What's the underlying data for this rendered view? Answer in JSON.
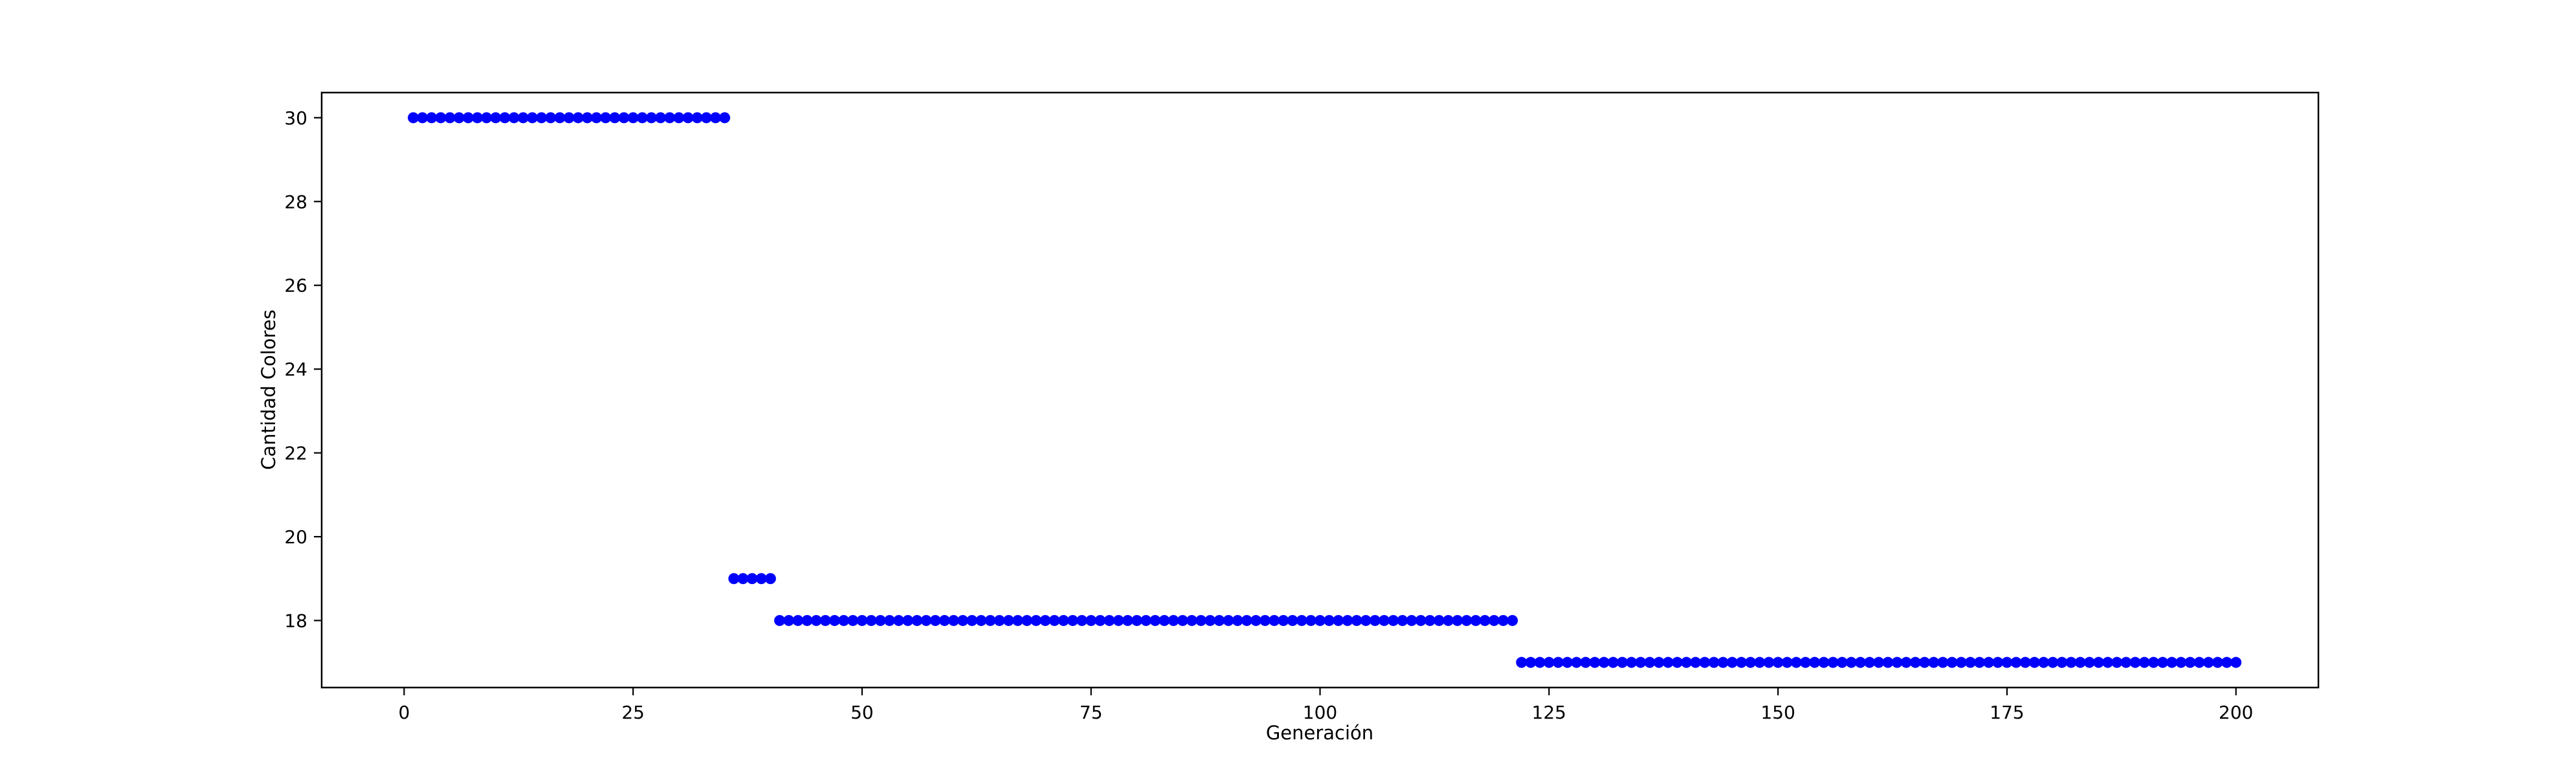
{
  "chart_data": {
    "type": "scatter",
    "title": "",
    "xlabel": "Generación",
    "ylabel": "Cantidad Colores",
    "xlim": [
      -9,
      209
    ],
    "ylim": [
      16.4,
      30.6
    ],
    "xticks": [
      0,
      25,
      50,
      75,
      100,
      125,
      150,
      175,
      200
    ],
    "yticks": [
      18,
      20,
      22,
      24,
      26,
      28,
      30
    ],
    "grid": false,
    "marker_color": "#0000ff",
    "series": [
      {
        "name": "Cantidad Colores",
        "segments": [
          {
            "x_from": 1,
            "x_to": 35,
            "y": 30
          },
          {
            "x_from": 36,
            "x_to": 40,
            "y": 19
          },
          {
            "x_from": 41,
            "x_to": 121,
            "y": 18
          },
          {
            "x_from": 122,
            "x_to": 200,
            "y": 17
          }
        ]
      }
    ]
  }
}
